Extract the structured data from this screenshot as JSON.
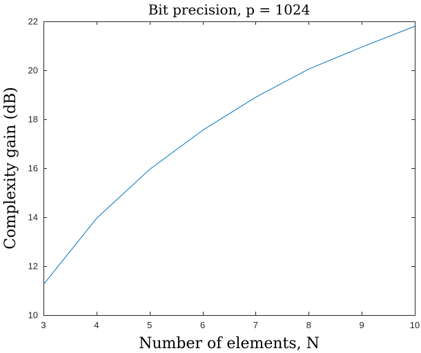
{
  "chart_data": {
    "type": "line",
    "title": "Bit precision, p = 1024",
    "xlabel": "Number of elements, N",
    "ylabel": "Complexity gain (dB)",
    "xlim": [
      3,
      10
    ],
    "ylim": [
      10,
      22
    ],
    "xticks": [
      3,
      4,
      5,
      6,
      7,
      8,
      9,
      10
    ],
    "yticks": [
      10,
      12,
      14,
      16,
      18,
      20,
      22
    ],
    "x": [
      3,
      4,
      5,
      6,
      7,
      8,
      9,
      10
    ],
    "series": [
      {
        "values": [
          11.25,
          13.95,
          15.95,
          17.55,
          18.9,
          20.05,
          20.95,
          21.8
        ],
        "color": "#0072BD"
      }
    ],
    "grid": false,
    "legend": "none",
    "box": true
  }
}
